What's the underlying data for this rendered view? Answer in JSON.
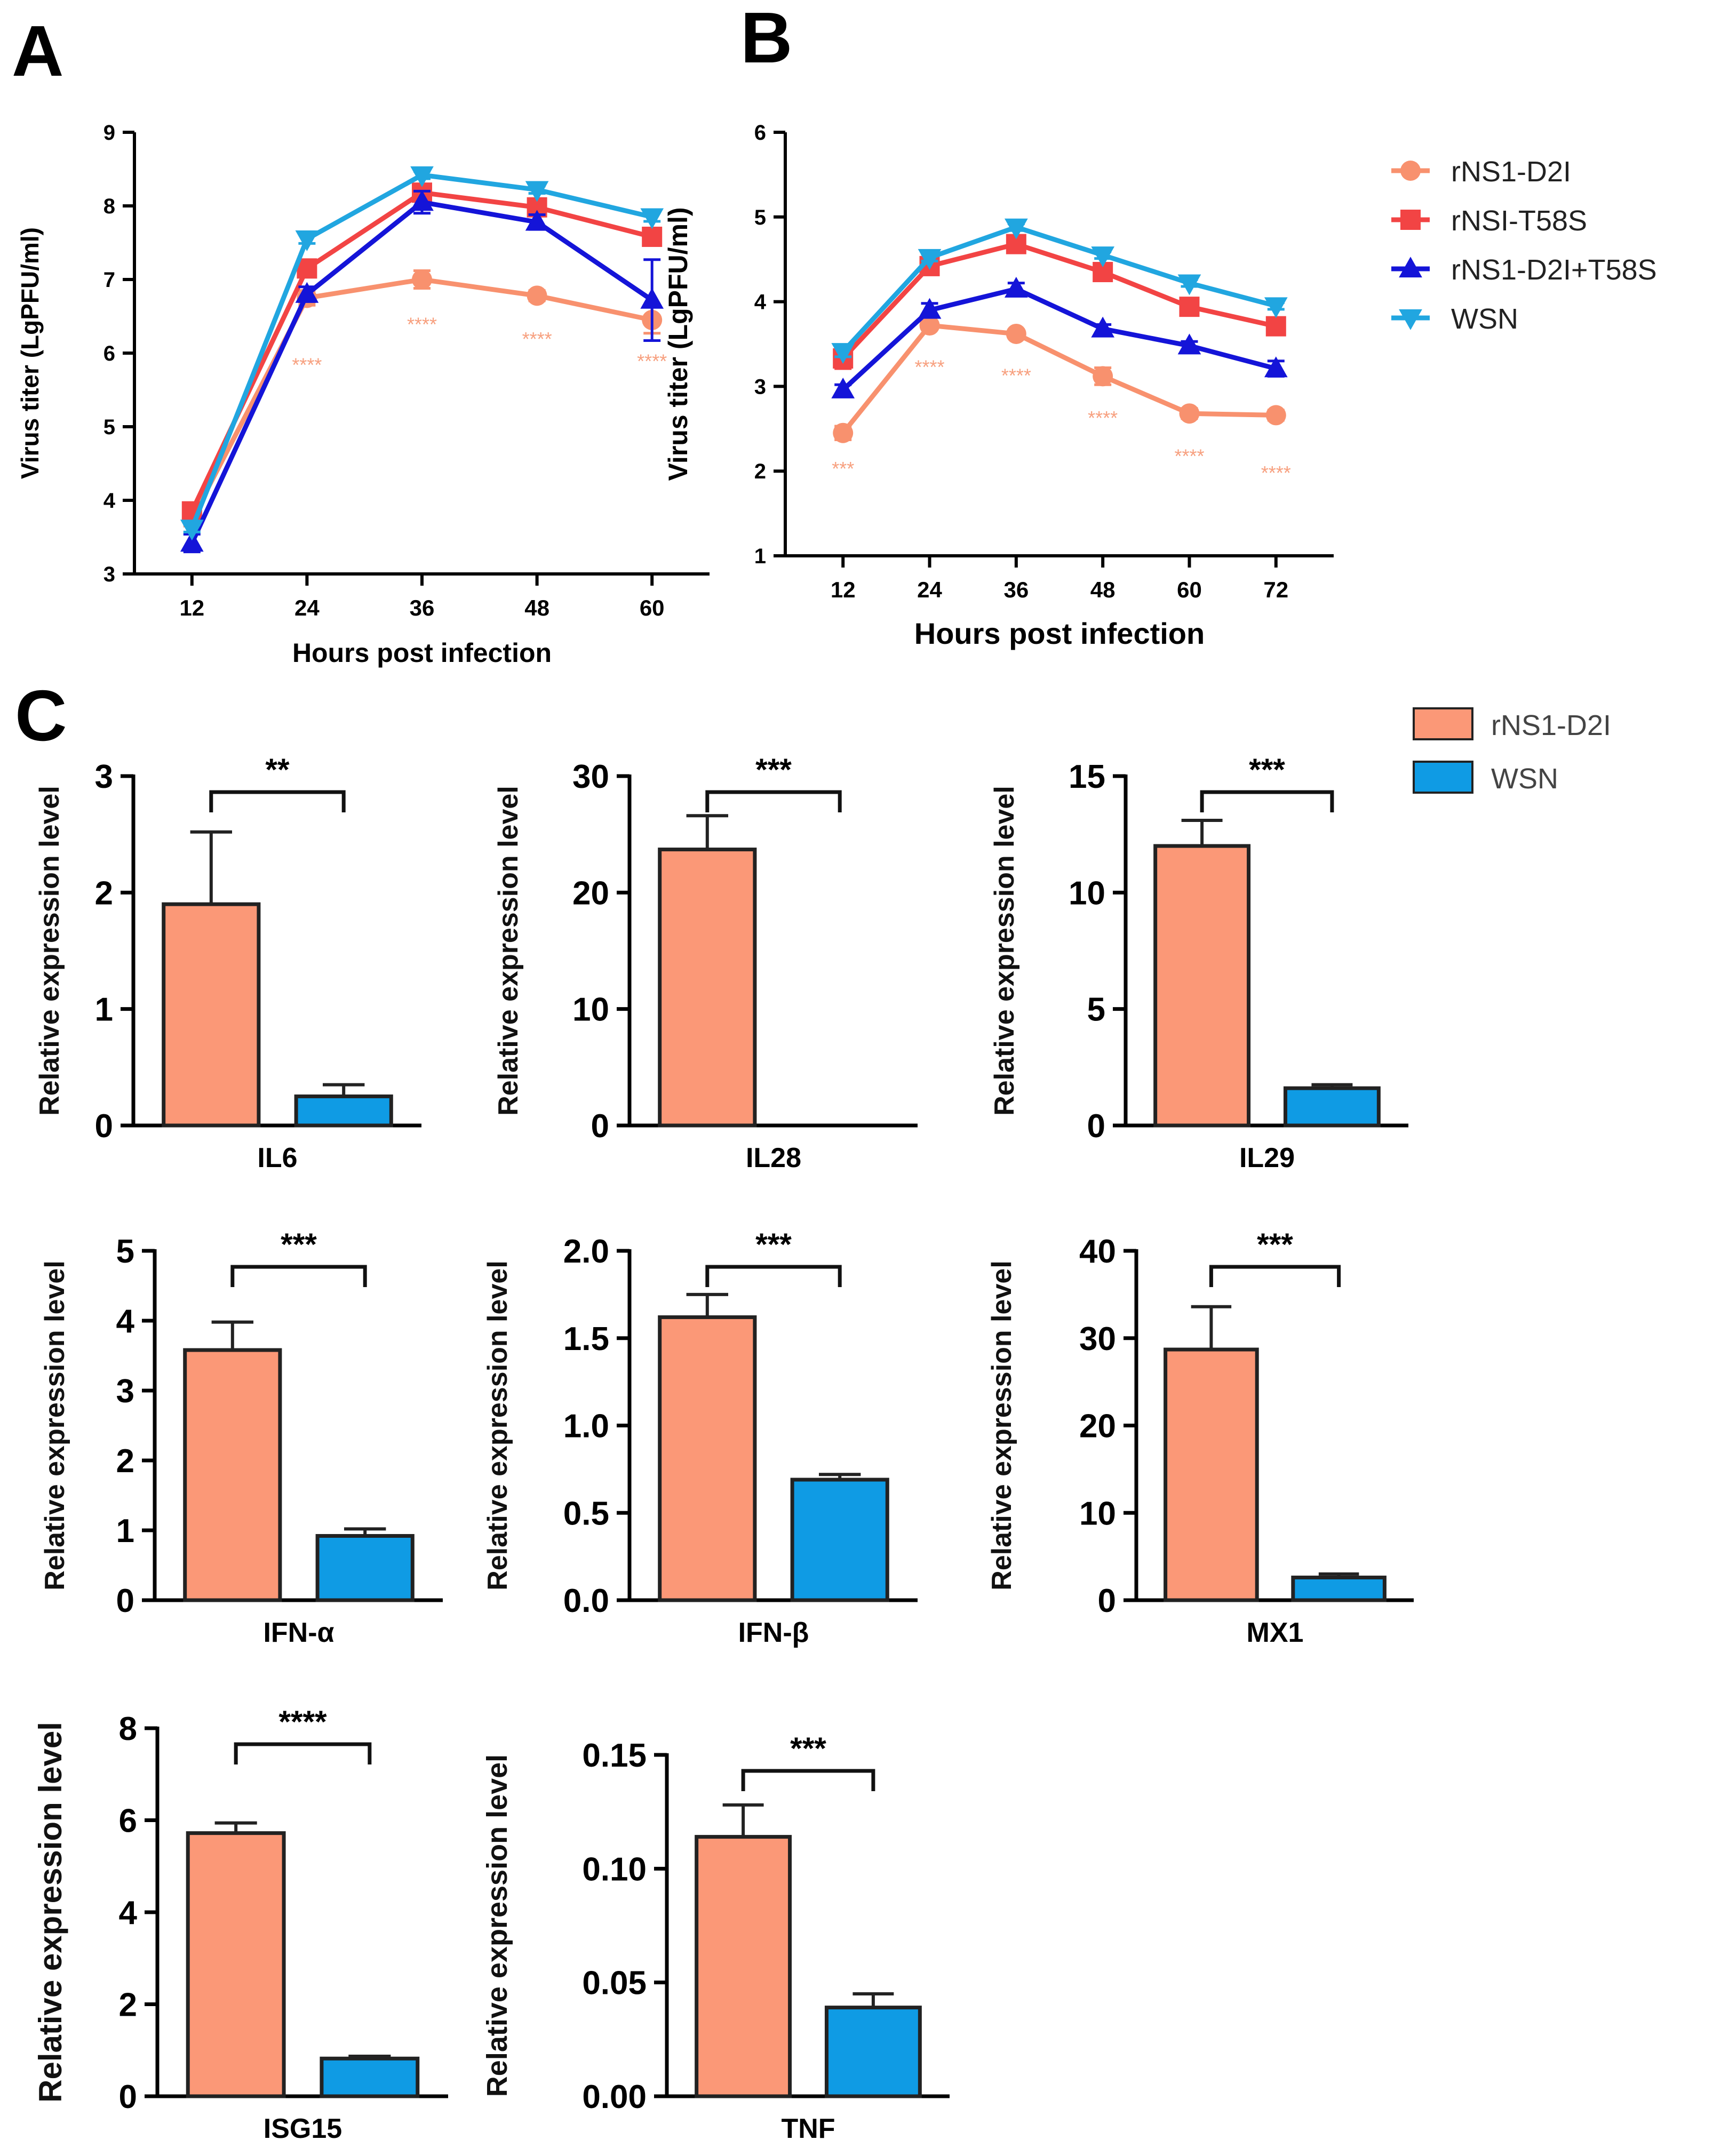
{
  "colors": {
    "d2i": "#f8916e",
    "t58s": "#f24444",
    "d2i_t58s": "#1414d8",
    "wsn": "#21a6e0",
    "bar_d2i": "#fb9877",
    "bar_wsn": "#0f9be4",
    "sig_line": "#f7a07f"
  },
  "panels": {
    "a": "A",
    "b": "B",
    "c": "C"
  },
  "legend_ab": [
    "rNS1-D2I",
    "rNSI-T58S",
    "rNS1-D2I+T58S",
    "WSN"
  ],
  "legend_c": [
    "rNS1-D2I",
    "WSN"
  ],
  "chart_data": [
    {
      "id": "A",
      "type": "line",
      "xlabel": "Hours post infection",
      "ylabel": "Virus titer (LgPFU/ml)",
      "x": [
        12,
        24,
        36,
        48,
        60
      ],
      "xlim": [
        6,
        66
      ],
      "ylim": [
        3,
        9
      ],
      "yticks": [
        3,
        4,
        5,
        6,
        7,
        8,
        9
      ],
      "series": [
        {
          "name": "rNS1-D2I",
          "marker": "circle",
          "values": [
            3.75,
            6.75,
            7.0,
            6.78,
            6.45
          ],
          "errors": [
            0.1,
            0.1,
            0.12,
            0.07,
            0.18
          ]
        },
        {
          "name": "rNSI-T58S",
          "marker": "square",
          "values": [
            3.85,
            7.15,
            8.18,
            7.98,
            7.58
          ],
          "errors": [
            0.05,
            0.1,
            0.08,
            0.06,
            0.08
          ]
        },
        {
          "name": "rNS1-D2I+T58S",
          "marker": "triangle-up",
          "values": [
            3.42,
            6.8,
            8.05,
            7.78,
            6.72
          ],
          "errors": [
            0.12,
            0.1,
            0.15,
            0.1,
            0.55
          ]
        },
        {
          "name": "WSN",
          "marker": "triangle-down",
          "values": [
            3.62,
            7.55,
            8.42,
            8.22,
            7.85
          ],
          "errors": [
            0.05,
            0.06,
            0.05,
            0.05,
            0.06
          ]
        }
      ],
      "significance": [
        {
          "x": 24,
          "y": 5.75,
          "label": "****"
        },
        {
          "x": 36,
          "y": 6.3,
          "label": "****"
        },
        {
          "x": 48,
          "y": 6.1,
          "label": "****"
        },
        {
          "x": 60,
          "y": 5.8,
          "label": "****"
        }
      ]
    },
    {
      "id": "B",
      "type": "line",
      "xlabel": "Hours post infection",
      "ylabel": "Virus titer (LgPFU/ml)",
      "x": [
        12,
        24,
        36,
        48,
        60,
        72
      ],
      "xlim": [
        4,
        80
      ],
      "ylim": [
        1,
        6
      ],
      "yticks": [
        1,
        2,
        3,
        4,
        5,
        6
      ],
      "series": [
        {
          "name": "rNS1-D2I",
          "marker": "circle",
          "values": [
            2.45,
            3.72,
            3.62,
            3.12,
            2.68,
            2.66
          ],
          "errors": [
            0.08,
            0.05,
            0.05,
            0.1,
            0.06,
            0.06
          ]
        },
        {
          "name": "rNSI-T58S",
          "marker": "square",
          "values": [
            3.33,
            4.42,
            4.68,
            4.35,
            3.94,
            3.71
          ],
          "errors": [
            0.12,
            0.06,
            0.05,
            0.05,
            0.05,
            0.05
          ]
        },
        {
          "name": "rNS1-D2I+T58S",
          "marker": "triangle-up",
          "values": [
            2.96,
            3.9,
            4.15,
            3.68,
            3.48,
            3.21
          ],
          "errors": [
            0.06,
            0.08,
            0.07,
            0.05,
            0.05,
            0.09
          ]
        },
        {
          "name": "WSN",
          "marker": "triangle-down",
          "values": [
            3.41,
            4.52,
            4.88,
            4.55,
            4.22,
            3.95
          ],
          "errors": [
            0.06,
            0.04,
            0.04,
            0.04,
            0.04,
            0.04
          ]
        }
      ],
      "significance": [
        {
          "x": 12,
          "y": 1.95,
          "label": "***"
        },
        {
          "x": 24,
          "y": 3.15,
          "label": "****"
        },
        {
          "x": 36,
          "y": 3.05,
          "label": "****"
        },
        {
          "x": 48,
          "y": 2.55,
          "label": "****"
        },
        {
          "x": 60,
          "y": 2.1,
          "label": "****"
        },
        {
          "x": 72,
          "y": 1.9,
          "label": "****"
        }
      ]
    },
    {
      "id": "IL6",
      "type": "bar",
      "xlabel": "IL6",
      "ylabel": "Relative expression level",
      "ylim": [
        0,
        3
      ],
      "yticks": [
        "0",
        "1",
        "2",
        "3"
      ],
      "categories": [
        "rNS1-D2I",
        "WSN"
      ],
      "values": [
        1.9,
        0.25
      ],
      "errors": [
        0.62,
        0.1
      ],
      "significance": "**"
    },
    {
      "id": "IL28",
      "type": "bar",
      "xlabel": "IL28",
      "ylabel": "Relative expression level",
      "ylim": [
        0,
        30
      ],
      "yticks": [
        "0",
        "10",
        "20",
        "30"
      ],
      "categories": [
        "rNS1-D2I",
        "WSN"
      ],
      "values": [
        23.7,
        0
      ],
      "errors": [
        2.9,
        0
      ],
      "significance": "***"
    },
    {
      "id": "IL29",
      "type": "bar",
      "xlabel": "IL29",
      "ylabel": "Relative expression level",
      "ylim": [
        0,
        15
      ],
      "yticks": [
        "0",
        "5",
        "10",
        "15"
      ],
      "categories": [
        "rNS1-D2I",
        "WSN"
      ],
      "values": [
        12.0,
        1.6
      ],
      "errors": [
        1.1,
        0.15
      ],
      "significance": "***"
    },
    {
      "id": "IFN-a",
      "type": "bar",
      "xlabel": "IFN-α",
      "ylabel": "Relative expression level",
      "ylim": [
        0,
        5
      ],
      "yticks": [
        "0",
        "1",
        "2",
        "3",
        "4",
        "5"
      ],
      "categories": [
        "rNS1-D2I",
        "WSN"
      ],
      "values": [
        3.58,
        0.92
      ],
      "errors": [
        0.4,
        0.1
      ],
      "significance": "***"
    },
    {
      "id": "IFN-b",
      "type": "bar",
      "xlabel": "IFN-β",
      "ylabel": "Relative expression level",
      "ylim": [
        0,
        2
      ],
      "yticks": [
        "0.0",
        "0.5",
        "1.0",
        "1.5",
        "2.0"
      ],
      "categories": [
        "rNS1-D2I",
        "WSN"
      ],
      "values": [
        1.62,
        0.69
      ],
      "errors": [
        0.13,
        0.03
      ],
      "significance": "***"
    },
    {
      "id": "MX1",
      "type": "bar",
      "xlabel": "MX1",
      "ylabel": "Relative expression level",
      "ylim": [
        0,
        40
      ],
      "yticks": [
        "0",
        "10",
        "20",
        "30",
        "40"
      ],
      "categories": [
        "rNS1-D2I",
        "WSN"
      ],
      "values": [
        28.7,
        2.6
      ],
      "errors": [
        4.9,
        0.4
      ],
      "significance": "***"
    },
    {
      "id": "ISG15",
      "type": "bar",
      "xlabel": "ISG15",
      "ylabel": "Relative expression level",
      "ylim": [
        0,
        8
      ],
      "yticks": [
        "0",
        "2",
        "4",
        "6",
        "8"
      ],
      "categories": [
        "rNS1-D2I",
        "WSN"
      ],
      "values": [
        5.72,
        0.82
      ],
      "errors": [
        0.22,
        0.05
      ],
      "significance": "****"
    },
    {
      "id": "TNF",
      "type": "bar",
      "xlabel": "TNF",
      "ylabel": "Relative expression level",
      "ylim": [
        0,
        0.15
      ],
      "yticks": [
        "0.00",
        "0.05",
        "0.10",
        "0.15"
      ],
      "categories": [
        "rNS1-D2I",
        "WSN"
      ],
      "values": [
        0.114,
        0.039
      ],
      "errors": [
        0.014,
        0.006
      ],
      "significance": "***"
    }
  ]
}
